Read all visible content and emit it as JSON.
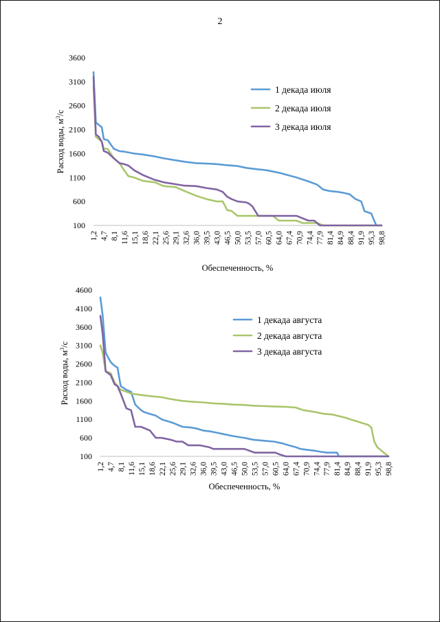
{
  "page_number": "2",
  "chart_data": [
    {
      "type": "line",
      "xlabel": "Обеспеченность, %",
      "ylabel": "Расход воды, м³/с",
      "ylabel_main": "Расход воды, м",
      "ylabel_sup": "3",
      "ylabel_tail": "/с",
      "ylim": [
        100,
        3600
      ],
      "yticks": [
        "100",
        "600",
        "1100",
        "1600",
        "2100",
        "2600",
        "3100",
        "3600"
      ],
      "xlim": [
        1.2,
        98.8
      ],
      "xticks": [
        "1,2",
        "4,7",
        "8,1",
        "11,6",
        "15,1",
        "18,6",
        "22,1",
        "25,6",
        "29,1",
        "32,6",
        "36,0",
        "39,5",
        "43,0",
        "46,5",
        "50,0",
        "53,5",
        "57,0",
        "60,5",
        "64,0",
        "67,4",
        "70,9",
        "74,4",
        "77,9",
        "81,4",
        "84,9",
        "88,4",
        "91,9",
        "95,3",
        "98,8"
      ],
      "grid": false,
      "legend": "right",
      "series": [
        {
          "name": "1 декада июля",
          "color": "#5b9bd5",
          "x": [
            1.2,
            2,
            3,
            4,
            4.7,
            6,
            8.1,
            10,
            11.6,
            15,
            18,
            22,
            25,
            29,
            32,
            36,
            40,
            43,
            46,
            50,
            53,
            57,
            60,
            64,
            67,
            70,
            74,
            77,
            79,
            81,
            84,
            86,
            88,
            90,
            91.9,
            93,
            95.3,
            97,
            98.8
          ],
          "y": [
            3300,
            2250,
            2200,
            2150,
            1900,
            1880,
            1700,
            1650,
            1640,
            1600,
            1580,
            1540,
            1500,
            1460,
            1430,
            1400,
            1390,
            1380,
            1360,
            1340,
            1300,
            1270,
            1250,
            1200,
            1150,
            1100,
            1020,
            950,
            850,
            820,
            800,
            780,
            750,
            650,
            600,
            400,
            350,
            100,
            100
          ]
        },
        {
          "name": "2 декада июля",
          "color": "#a9c66a",
          "x": [
            1.2,
            2,
            3,
            4,
            4.7,
            6,
            8.1,
            10,
            11.6,
            13,
            15,
            18,
            22,
            25,
            29,
            32,
            36,
            39.5,
            43,
            45,
            46.5,
            48,
            50,
            53,
            57,
            60,
            62,
            64,
            67,
            70,
            72,
            74,
            77,
            79,
            81,
            98.8
          ],
          "y": [
            3000,
            1950,
            1900,
            1850,
            1700,
            1700,
            1500,
            1400,
            1250,
            1130,
            1100,
            1030,
            1000,
            920,
            900,
            820,
            720,
            650,
            600,
            600,
            420,
            400,
            300,
            300,
            300,
            300,
            300,
            200,
            200,
            200,
            150,
            150,
            150,
            100,
            100,
            100
          ]
        },
        {
          "name": "3 декада июля",
          "color": "#8064a2",
          "x": [
            1.2,
            2,
            3,
            4,
            4.7,
            6,
            8.1,
            10,
            11.6,
            13,
            15,
            18,
            20,
            22,
            25,
            29,
            32,
            36,
            39.5,
            43,
            45,
            46.5,
            48,
            50,
            53,
            54,
            55,
            57,
            60,
            64,
            67,
            70,
            74,
            76,
            77.9,
            98.8
          ],
          "y": [
            3200,
            2000,
            1950,
            1850,
            1650,
            1620,
            1500,
            1400,
            1380,
            1350,
            1250,
            1150,
            1100,
            1050,
            1000,
            960,
            930,
            920,
            880,
            850,
            800,
            700,
            650,
            600,
            580,
            550,
            500,
            300,
            300,
            300,
            300,
            300,
            200,
            200,
            100,
            100
          ]
        }
      ]
    },
    {
      "type": "line",
      "xlabel": "Обеспеченность, %",
      "ylabel": "Расход воды, м³/с",
      "ylabel_main": "Расход воды, м",
      "ylabel_sup": "3",
      "ylabel_tail": "/с",
      "ylim": [
        100,
        4600
      ],
      "yticks": [
        "100",
        "600",
        "1100",
        "1600",
        "2100",
        "2600",
        "3100",
        "3600",
        "4100",
        "4600"
      ],
      "xlim": [
        1.2,
        98.8
      ],
      "xticks": [
        "1,2",
        "4,7",
        "8,1",
        "11,6",
        "15,1",
        "18,6",
        "22,1",
        "25,6",
        "29,1",
        "32,6",
        "36,0",
        "39,5",
        "43,0",
        "46,5",
        "50,0",
        "53,5",
        "57,0",
        "60,5",
        "64,0",
        "67,4",
        "70,9",
        "74,4",
        "77,9",
        "81,4",
        "84,9",
        "88,4",
        "91,9",
        "95,3",
        "98,8"
      ],
      "grid": false,
      "legend": "right",
      "series": [
        {
          "name": "1 декада августа",
          "color": "#5b9bd5",
          "x": [
            1.2,
            2,
            3,
            4.7,
            6,
            7,
            8.1,
            10,
            11.6,
            13,
            15,
            16,
            18,
            20,
            22,
            24,
            26,
            29,
            32,
            34,
            36,
            38,
            40,
            43,
            46,
            50,
            53,
            57,
            60,
            63,
            65,
            67.4,
            69,
            71,
            74,
            76,
            78,
            81.4,
            82,
            98.8
          ],
          "y": [
            4400,
            3900,
            2900,
            2650,
            2550,
            2500,
            2000,
            1900,
            1850,
            1500,
            1350,
            1300,
            1250,
            1200,
            1100,
            1050,
            1000,
            900,
            880,
            850,
            800,
            780,
            750,
            700,
            650,
            600,
            550,
            520,
            500,
            450,
            400,
            350,
            300,
            280,
            250,
            220,
            200,
            200,
            100,
            100
          ]
        },
        {
          "name": "2 декада августа",
          "color": "#a9c66a",
          "x": [
            1.2,
            2,
            3,
            4.7,
            6,
            8.1,
            10,
            11.6,
            15,
            18,
            22,
            25,
            29,
            32,
            36,
            40,
            43,
            46,
            50,
            53,
            57,
            60,
            64,
            67.4,
            70,
            74,
            77,
            80,
            81.4,
            84,
            86,
            88,
            90,
            92,
            93,
            94,
            95,
            96.5,
            98.8
          ],
          "y": [
            3100,
            2900,
            2400,
            2350,
            2100,
            1900,
            1850,
            1800,
            1760,
            1730,
            1700,
            1650,
            1600,
            1580,
            1560,
            1530,
            1520,
            1500,
            1490,
            1470,
            1460,
            1450,
            1440,
            1420,
            1350,
            1300,
            1250,
            1230,
            1200,
            1150,
            1100,
            1050,
            1000,
            950,
            880,
            500,
            350,
            250,
            100
          ]
        },
        {
          "name": "3 декада августа",
          "color": "#8064a2",
          "x": [
            1.2,
            2,
            3,
            4.7,
            6,
            7,
            8.1,
            10,
            11.6,
            13,
            15,
            18,
            20,
            22,
            25,
            27,
            29,
            31,
            32.6,
            35,
            36,
            38,
            39.5,
            43,
            46.5,
            50,
            53.5,
            57,
            60.5,
            62,
            64,
            98.8
          ],
          "y": [
            3900,
            3400,
            2400,
            2300,
            2050,
            2000,
            1800,
            1400,
            1350,
            900,
            900,
            800,
            600,
            600,
            550,
            500,
            500,
            400,
            400,
            400,
            380,
            350,
            300,
            300,
            300,
            300,
            200,
            200,
            200,
            150,
            100,
            100
          ]
        }
      ]
    }
  ]
}
